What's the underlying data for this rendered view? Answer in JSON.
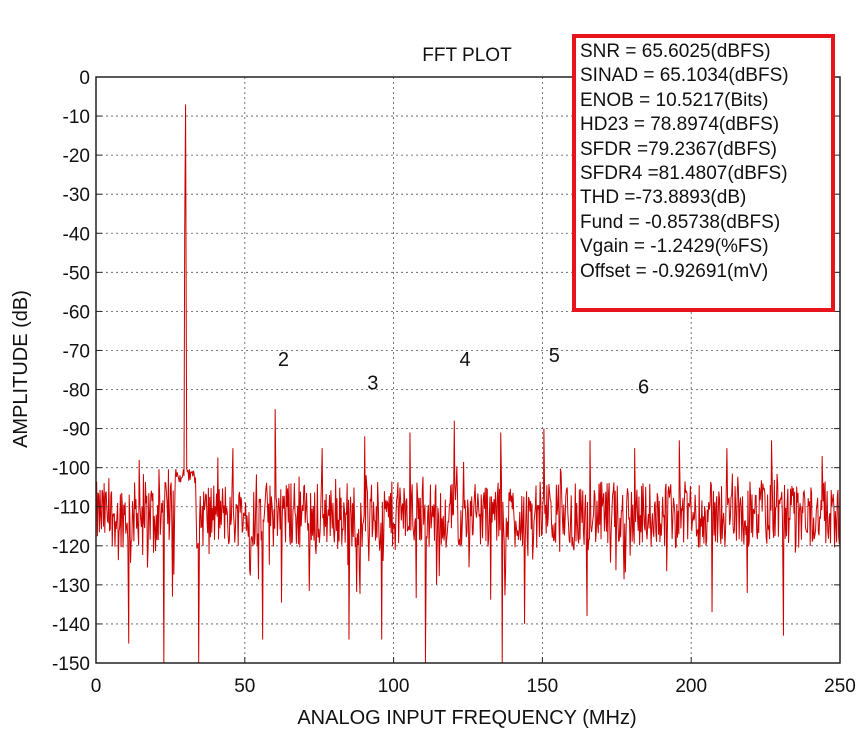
{
  "chart_data": {
    "type": "line",
    "title": "FFT PLOT",
    "xlabel": "ANALOG INPUT FREQUENCY (MHz)",
    "ylabel": "AMPLITUDE (dB)",
    "xlim": [
      0,
      250
    ],
    "ylim": [
      -150,
      0
    ],
    "xticks": [
      "0",
      "50",
      "100",
      "150",
      "200",
      "250"
    ],
    "yticks": [
      "0",
      "-10",
      "-20",
      "-30",
      "-40",
      "-50",
      "-60",
      "-70",
      "-80",
      "-90",
      "-100",
      "-110",
      "-120",
      "-130",
      "-140",
      "-150"
    ],
    "grid": "dotted",
    "series_color": "#cc0000",
    "noise_floor_db": -112,
    "fundamental": {
      "x": 30.1,
      "y": -7
    },
    "spurs": [
      {
        "x": 14.5,
        "y": -98
      },
      {
        "x": 46,
        "y": -95
      },
      {
        "x": 60.2,
        "y": -85
      },
      {
        "x": 76,
        "y": -95
      },
      {
        "x": 90.3,
        "y": -92
      },
      {
        "x": 105.5,
        "y": -91
      },
      {
        "x": 120.4,
        "y": -88
      },
      {
        "x": 136,
        "y": -91
      },
      {
        "x": 150.5,
        "y": -90
      },
      {
        "x": 166,
        "y": -93
      },
      {
        "x": 181,
        "y": -95
      },
      {
        "x": 196,
        "y": -93
      },
      {
        "x": 212,
        "y": -95
      },
      {
        "x": 227,
        "y": -93
      },
      {
        "x": 244,
        "y": -97
      }
    ],
    "dips": [
      {
        "x": 11,
        "y": -145
      },
      {
        "x": 22.8,
        "y": -150
      },
      {
        "x": 34.5,
        "y": -150
      },
      {
        "x": 56,
        "y": -144
      },
      {
        "x": 85,
        "y": -144
      },
      {
        "x": 96,
        "y": -144
      },
      {
        "x": 110.7,
        "y": -150
      },
      {
        "x": 136.5,
        "y": -150
      },
      {
        "x": 144,
        "y": -140
      },
      {
        "x": 165,
        "y": -138
      },
      {
        "x": 207,
        "y": -137
      },
      {
        "x": 231,
        "y": -143
      }
    ],
    "annotations": [
      {
        "text": "2",
        "x": 63,
        "y": -74
      },
      {
        "text": "3",
        "x": 93,
        "y": -80
      },
      {
        "text": "4",
        "x": 124,
        "y": -74
      },
      {
        "text": "5",
        "x": 154,
        "y": -73
      },
      {
        "text": "6",
        "x": 184,
        "y": -81
      }
    ]
  },
  "stats_box": {
    "border_color": "#e8141b",
    "lines": [
      "SNR = 65.6025(dBFS)",
      "SINAD = 65.1034(dBFS)",
      "ENOB = 10.5217(Bits)",
      "HD23 = 78.8974(dBFS)",
      "SFDR =79.2367(dBFS)",
      "SFDR4 =81.4807(dBFS)",
      "THD =-73.8893(dB)",
      "Fund = -0.85738(dBFS)",
      "Vgain = -1.2429(%FS)",
      "Offset = -0.92691(mV)"
    ]
  }
}
